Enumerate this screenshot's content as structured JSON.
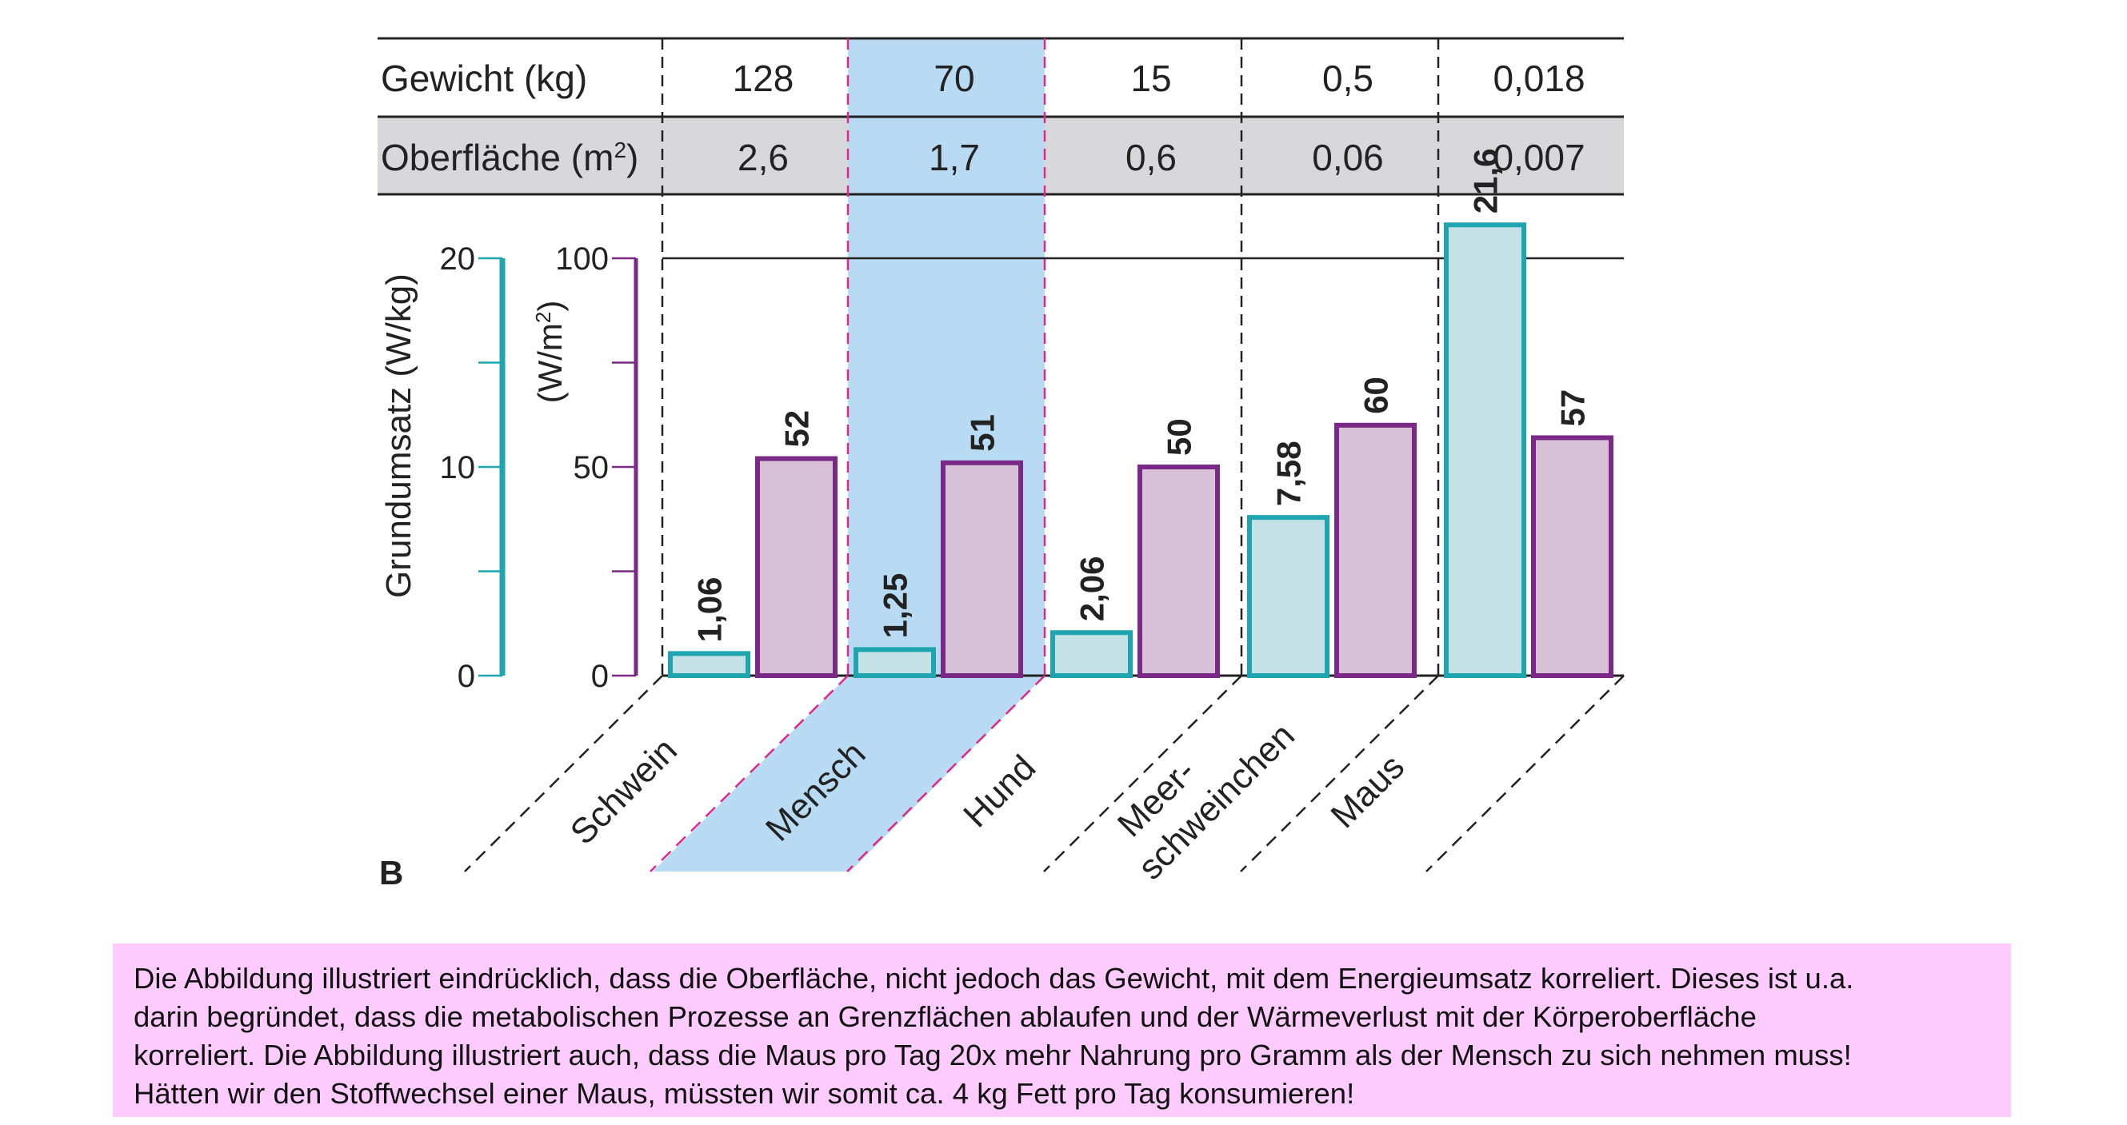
{
  "chart_data": {
    "type": "bar",
    "panel_label": "B",
    "table": {
      "rows": [
        {
          "label": "Gewicht (kg)",
          "values": [
            "128",
            "70",
            "15",
            "0,5",
            "0,018"
          ]
        },
        {
          "label_main": "Oberfläche (m",
          "label_sup": "2",
          "label_end": ")",
          "values": [
            "2,6",
            "1,7",
            "0,6",
            "0,06",
            "0,007"
          ]
        }
      ]
    },
    "categories": [
      "Schwein",
      "Mensch",
      "Hund",
      "Meer- schweinchen",
      "Maus"
    ],
    "category_lines": [
      [
        "Schwein"
      ],
      [
        "Mensch"
      ],
      [
        "Hund"
      ],
      [
        "Meer-",
        "schweinchen"
      ],
      [
        "Maus"
      ]
    ],
    "highlighted_category": "Mensch",
    "series": [
      {
        "values": [
          1.06,
          1.25,
          2.06,
          7.58,
          21.6
        ],
        "labels": [
          "1,06",
          "1,25",
          "2,06",
          "7,58",
          "21,6"
        ],
        "axis": "left",
        "color": "#1fa5b0",
        "fill": "#c4e2e6"
      },
      {
        "values": [
          52,
          51,
          50,
          60,
          57
        ],
        "labels": [
          "52",
          "51",
          "50",
          "60",
          "57"
        ],
        "axis": "right",
        "color": "#7a2a86",
        "fill": "#d8c0d6"
      }
    ],
    "axes": {
      "left": {
        "label": "Grundumsatz (W/kg)",
        "ylim": [
          0,
          20
        ],
        "ticks": [
          "0",
          "10",
          "20"
        ],
        "color": "#1fa5b0"
      },
      "right": {
        "label_main": "(W/m",
        "label_sup": "2",
        "label_end": ")",
        "ylim": [
          0,
          100
        ],
        "ticks": [
          "0",
          "50",
          "100"
        ],
        "color": "#7a2a86"
      }
    },
    "colors": {
      "highlight": "#b8dbf3",
      "highlight_border": "#e0288a",
      "table_shade": "#d6d6d8"
    }
  },
  "caption": {
    "lines": [
      "Die Abbildung illustriert eindrücklich, dass die Oberfläche, nicht jedoch das Gewicht, mit dem Energieumsatz korreliert. Dieses ist u.a.",
      "darin begründet, dass die metabolischen Prozesse an Grenzflächen ablaufen und der Wärmeverlust mit der Körperoberfläche",
      "korreliert. Die Abbildung illustriert auch, dass die Maus pro Tag 20x mehr Nahrung pro Gramm als der Mensch zu sich nehmen muss!",
      "Hätten wir den Stoffwechsel einer Maus, müssten wir somit ca. 4 kg Fett pro Tag konsumieren!"
    ]
  }
}
